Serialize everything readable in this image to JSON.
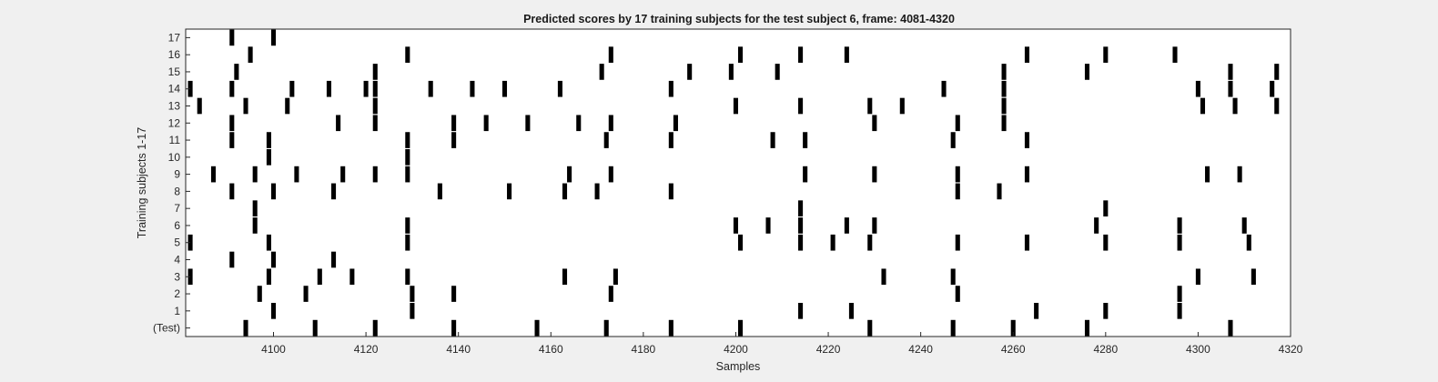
{
  "figure": {
    "background": "#f0f0f0",
    "axes_background": "#ffffff",
    "mark_color": "#000000"
  },
  "chart_data": {
    "type": "raster",
    "title": "Predicted scores by 17 training subjects for the test subject 6, frame: 4081-4320",
    "xlabel": "Samples",
    "ylabel": "Training subjects 1-17",
    "xlim": [
      4081,
      4320
    ],
    "xticks": [
      4100,
      4120,
      4140,
      4160,
      4180,
      4200,
      4220,
      4240,
      4260,
      4280,
      4300,
      4320
    ],
    "ytick_labels": [
      "(Test)",
      "1",
      "2",
      "3",
      "4",
      "5",
      "6",
      "7",
      "8",
      "9",
      "10",
      "11",
      "12",
      "13",
      "14",
      "15",
      "16",
      "17"
    ],
    "grid": false,
    "rows": [
      {
        "label": "(Test)",
        "events": [
          [
            4094,
            1
          ],
          [
            4109,
            1
          ],
          [
            4122,
            1
          ],
          [
            4139,
            1
          ],
          [
            4157,
            1
          ],
          [
            4172,
            1
          ],
          [
            4186,
            1
          ],
          [
            4201,
            1
          ],
          [
            4229,
            1
          ],
          [
            4247,
            1
          ],
          [
            4260,
            1
          ],
          [
            4276,
            1
          ],
          [
            4307,
            1
          ]
        ]
      },
      {
        "label": "1",
        "events": [
          [
            4100,
            1
          ],
          [
            4130,
            1
          ],
          [
            4214,
            1
          ],
          [
            4225,
            1
          ],
          [
            4265,
            1
          ],
          [
            4280,
            1
          ],
          [
            4296,
            1
          ]
        ]
      },
      {
        "label": "2",
        "events": [
          [
            4097,
            1
          ],
          [
            4107,
            1
          ],
          [
            4130,
            1
          ],
          [
            4139,
            1
          ],
          [
            4173,
            1
          ],
          [
            4248,
            1
          ],
          [
            4296,
            1
          ]
        ]
      },
      {
        "label": "3",
        "events": [
          [
            4082,
            1
          ],
          [
            4099,
            1
          ],
          [
            4110,
            1
          ],
          [
            4117,
            1
          ],
          [
            4129,
            1
          ],
          [
            4163,
            1
          ],
          [
            4174,
            1
          ],
          [
            4232,
            1
          ],
          [
            4247,
            1
          ],
          [
            4300,
            1
          ],
          [
            4312,
            1
          ]
        ]
      },
      {
        "label": "4",
        "events": [
          [
            4091,
            1
          ],
          [
            4100,
            1
          ],
          [
            4113,
            1
          ]
        ]
      },
      {
        "label": "5",
        "events": [
          [
            4082,
            1
          ],
          [
            4099,
            1
          ],
          [
            4129,
            1
          ],
          [
            4201,
            1
          ],
          [
            4214,
            1
          ],
          [
            4221,
            1
          ],
          [
            4229,
            1
          ],
          [
            4248,
            1
          ],
          [
            4263,
            1
          ],
          [
            4280,
            1
          ],
          [
            4296,
            1
          ],
          [
            4311,
            1
          ]
        ]
      },
      {
        "label": "6",
        "events": [
          [
            4096,
            1
          ],
          [
            4129,
            1
          ],
          [
            4200,
            1
          ],
          [
            4207,
            1
          ],
          [
            4214,
            1
          ],
          [
            4224,
            1
          ],
          [
            4230,
            1
          ],
          [
            4278,
            1
          ],
          [
            4296,
            1
          ],
          [
            4310,
            1
          ]
        ]
      },
      {
        "label": "7",
        "events": [
          [
            4096,
            1
          ],
          [
            4214,
            1
          ],
          [
            4280,
            1
          ]
        ]
      },
      {
        "label": "8",
        "events": [
          [
            4091,
            1
          ],
          [
            4100,
            1
          ],
          [
            4113,
            1
          ],
          [
            4136,
            1
          ],
          [
            4151,
            1
          ],
          [
            4163,
            1
          ],
          [
            4170,
            1
          ],
          [
            4186,
            1
          ],
          [
            4248,
            1
          ],
          [
            4257,
            1
          ]
        ]
      },
      {
        "label": "9",
        "events": [
          [
            4087,
            1
          ],
          [
            4096,
            1
          ],
          [
            4105,
            1
          ],
          [
            4115,
            1
          ],
          [
            4122,
            1
          ],
          [
            4129,
            1
          ],
          [
            4164,
            1
          ],
          [
            4173,
            1
          ],
          [
            4215,
            1
          ],
          [
            4230,
            1
          ],
          [
            4248,
            1
          ],
          [
            4263,
            1
          ],
          [
            4302,
            1
          ],
          [
            4309,
            1
          ]
        ]
      },
      {
        "label": "10",
        "events": [
          [
            4099,
            1
          ],
          [
            4129,
            1
          ]
        ]
      },
      {
        "label": "11",
        "events": [
          [
            4091,
            1
          ],
          [
            4099,
            1
          ],
          [
            4129,
            1
          ],
          [
            4139,
            1
          ],
          [
            4172,
            1
          ],
          [
            4186,
            1
          ],
          [
            4208,
            1
          ],
          [
            4215,
            1
          ],
          [
            4247,
            1
          ],
          [
            4263,
            1
          ]
        ]
      },
      {
        "label": "12",
        "events": [
          [
            4091,
            1
          ],
          [
            4114,
            1
          ],
          [
            4122,
            1
          ],
          [
            4139,
            1
          ],
          [
            4146,
            1
          ],
          [
            4155,
            1
          ],
          [
            4166,
            1
          ],
          [
            4173,
            1
          ],
          [
            4187,
            1
          ],
          [
            4230,
            1
          ],
          [
            4248,
            1
          ],
          [
            4258,
            1
          ]
        ]
      },
      {
        "label": "13",
        "events": [
          [
            4084,
            1
          ],
          [
            4094,
            1
          ],
          [
            4103,
            1
          ],
          [
            4122,
            1
          ],
          [
            4200,
            1
          ],
          [
            4214,
            1
          ],
          [
            4229,
            1
          ],
          [
            4236,
            1
          ],
          [
            4258,
            1
          ],
          [
            4301,
            1
          ],
          [
            4308,
            1
          ],
          [
            4317,
            1
          ]
        ]
      },
      {
        "label": "14",
        "events": [
          [
            4082,
            1
          ],
          [
            4091,
            1
          ],
          [
            4104,
            1
          ],
          [
            4112,
            1
          ],
          [
            4120,
            1
          ],
          [
            4122,
            1
          ],
          [
            4134,
            1
          ],
          [
            4143,
            1
          ],
          [
            4150,
            1
          ],
          [
            4162,
            1
          ],
          [
            4186,
            1
          ],
          [
            4245,
            1
          ],
          [
            4258,
            1
          ],
          [
            4300,
            1
          ],
          [
            4307,
            1
          ],
          [
            4316,
            1
          ]
        ]
      },
      {
        "label": "15",
        "events": [
          [
            4092,
            1
          ],
          [
            4122,
            1
          ],
          [
            4171,
            1
          ],
          [
            4190,
            1
          ],
          [
            4199,
            1
          ],
          [
            4209,
            1
          ],
          [
            4258,
            1
          ],
          [
            4276,
            1
          ],
          [
            4307,
            1
          ],
          [
            4317,
            1
          ]
        ]
      },
      {
        "label": "16",
        "events": [
          [
            4095,
            1
          ],
          [
            4129,
            1
          ],
          [
            4173,
            1
          ],
          [
            4201,
            1
          ],
          [
            4214,
            1
          ],
          [
            4224,
            1
          ],
          [
            4263,
            1
          ],
          [
            4280,
            1
          ],
          [
            4295,
            1
          ]
        ]
      },
      {
        "label": "17",
        "events": [
          [
            4091,
            1
          ],
          [
            4100,
            1
          ]
        ]
      }
    ]
  }
}
